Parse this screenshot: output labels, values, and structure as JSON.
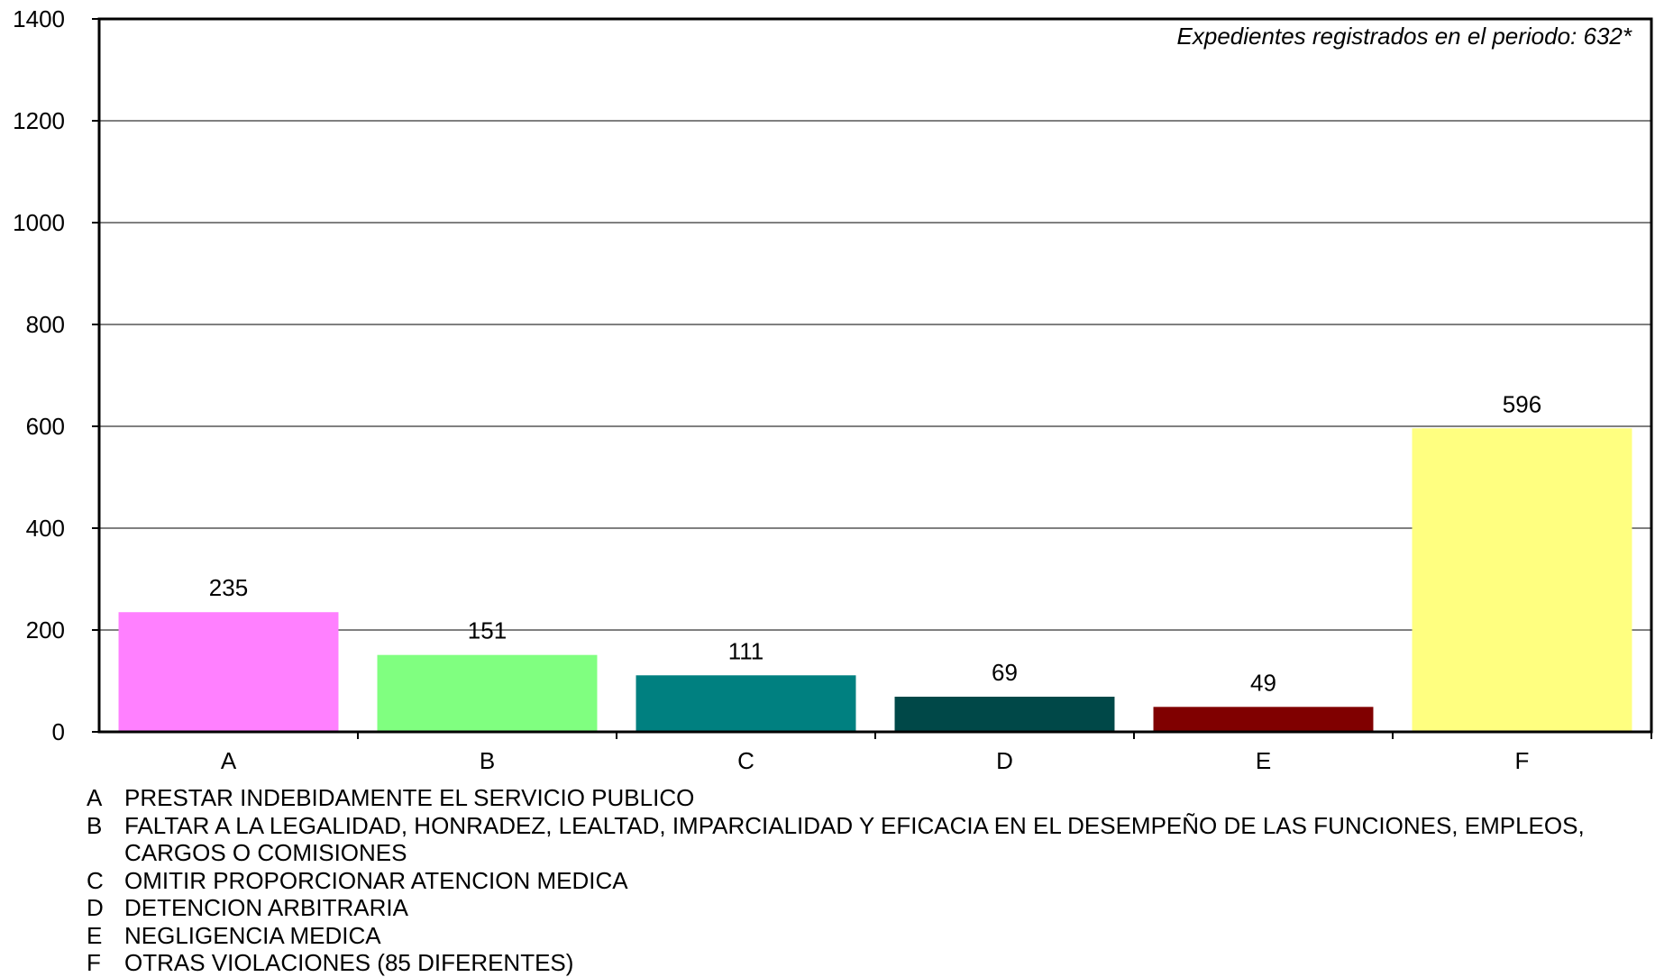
{
  "chart_data": {
    "type": "bar",
    "categories": [
      "A",
      "B",
      "C",
      "D",
      "E",
      "F"
    ],
    "values": [
      235,
      151,
      111,
      69,
      49,
      596
    ],
    "colors": [
      "#ff80ff",
      "#80ff80",
      "#008080",
      "#004848",
      "#800000",
      "#ffff80"
    ],
    "ylim": [
      0,
      1400
    ],
    "yticks": [
      0,
      200,
      400,
      600,
      800,
      1000,
      1200,
      1400
    ],
    "grid": true,
    "annotation": "Expedientes registrados en el periodo:   632*"
  },
  "legend": [
    {
      "letter": "A",
      "text": "PRESTAR INDEBIDAMENTE EL SERVICIO PUBLICO"
    },
    {
      "letter": "B",
      "text": "FALTAR A LA LEGALIDAD, HONRADEZ, LEALTAD, IMPARCIALIDAD Y EFICACIA EN EL DESEMPEÑO DE LAS FUNCIONES, EMPLEOS, CARGOS O COMISIONES"
    },
    {
      "letter": "C",
      "text": "OMITIR PROPORCIONAR ATENCION MEDICA"
    },
    {
      "letter": "D",
      "text": "DETENCION ARBITRARIA"
    },
    {
      "letter": "E",
      "text": "NEGLIGENCIA MEDICA"
    },
    {
      "letter": "F",
      "text": "OTRAS VIOLACIONES (85 DIFERENTES)"
    }
  ]
}
